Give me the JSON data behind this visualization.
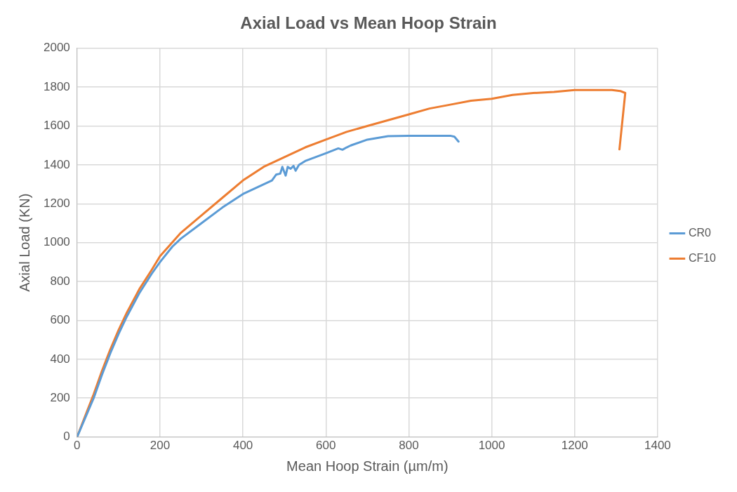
{
  "chart_data": {
    "type": "line",
    "title": "Axial Load vs Mean Hoop Strain",
    "xlabel": "Mean Hoop Strain (µm/m)",
    "ylabel": "Axial Load (KN)",
    "xlim": [
      0,
      1400
    ],
    "xticks": [
      0,
      200,
      400,
      600,
      800,
      1000,
      1200,
      1400
    ],
    "ylim": [
      0,
      2000
    ],
    "yticks": [
      0,
      200,
      400,
      600,
      800,
      1000,
      1200,
      1400,
      1600,
      1800,
      2000
    ],
    "grid": true,
    "legend": "right",
    "marker": "none",
    "line_style": "solid",
    "series": [
      {
        "name": "CR0",
        "color": "#5b9bd5",
        "x": [
          0,
          20,
          40,
          60,
          80,
          100,
          120,
          150,
          180,
          200,
          230,
          250,
          300,
          350,
          400,
          450,
          470,
          480,
          490,
          495,
          503,
          508,
          515,
          522,
          527,
          535,
          550,
          600,
          630,
          640,
          650,
          660,
          700,
          750,
          800,
          900,
          910,
          920
        ],
        "values": [
          0,
          100,
          200,
          320,
          430,
          530,
          620,
          740,
          840,
          900,
          980,
          1020,
          1100,
          1180,
          1250,
          1300,
          1320,
          1350,
          1355,
          1390,
          1345,
          1390,
          1380,
          1395,
          1370,
          1400,
          1420,
          1460,
          1485,
          1478,
          1490,
          1500,
          1530,
          1548,
          1550,
          1550,
          1545,
          1520
        ]
      },
      {
        "name": "CF10",
        "color": "#ed7d31",
        "x": [
          0,
          20,
          40,
          60,
          80,
          100,
          120,
          150,
          180,
          200,
          250,
          300,
          350,
          400,
          450,
          500,
          550,
          600,
          650,
          700,
          750,
          800,
          850,
          900,
          950,
          1000,
          1050,
          1100,
          1150,
          1200,
          1250,
          1290,
          1310,
          1322,
          1308
        ],
        "values": [
          0,
          110,
          220,
          340,
          450,
          550,
          640,
          760,
          860,
          930,
          1050,
          1140,
          1230,
          1320,
          1390,
          1440,
          1490,
          1530,
          1570,
          1600,
          1630,
          1660,
          1690,
          1710,
          1730,
          1740,
          1760,
          1770,
          1775,
          1785,
          1785,
          1785,
          1780,
          1770,
          1480
        ]
      }
    ]
  }
}
